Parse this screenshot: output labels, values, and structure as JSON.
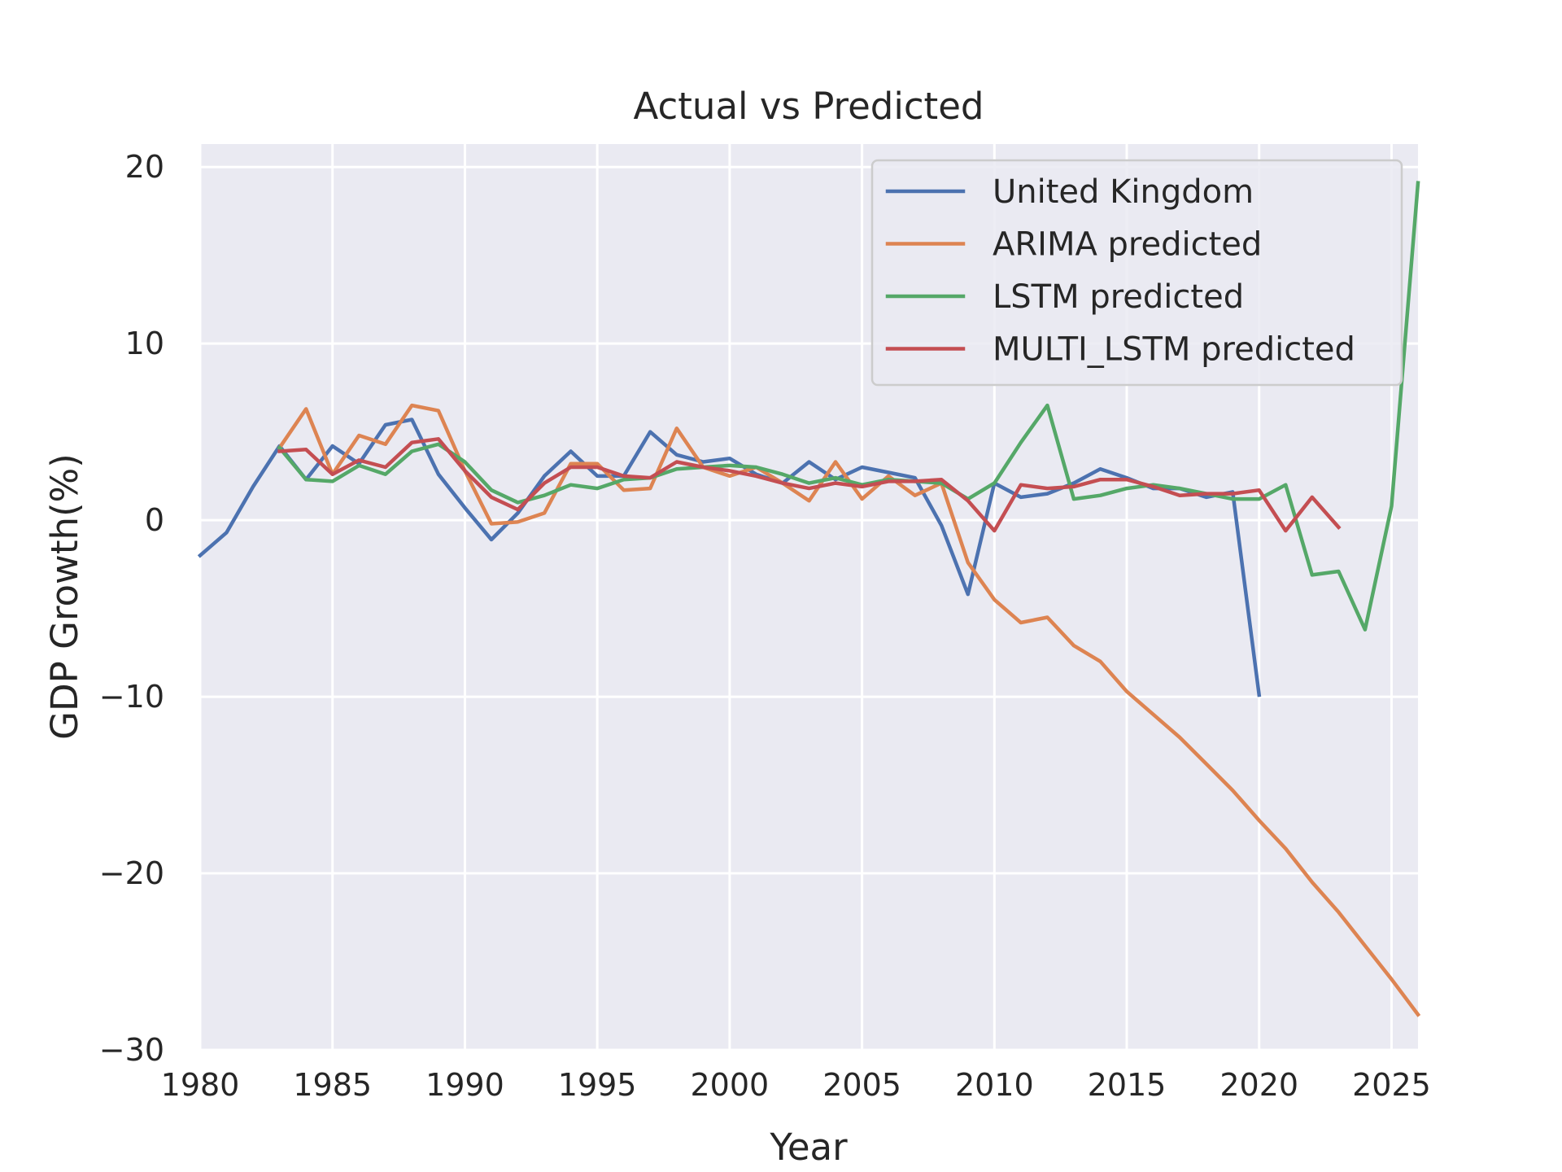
{
  "chart_data": {
    "type": "line",
    "title": "Actual vs Predicted",
    "xlabel": "Year",
    "ylabel": "GDP Growth(%)",
    "xlim": [
      1980,
      2026
    ],
    "ylim": [
      -30,
      21.3
    ],
    "xticks": [
      1980,
      1985,
      1990,
      1995,
      2000,
      2005,
      2010,
      2015,
      2020,
      2025
    ],
    "yticks": [
      20,
      10,
      0,
      -10,
      -20,
      -30
    ],
    "ytick_labels": [
      "20",
      "10",
      "0",
      "−10",
      "−20",
      "−30"
    ],
    "grid": true,
    "legend": "top-right",
    "series": [
      {
        "name": "United Kingdom",
        "color": "#4c72b0",
        "x": [
          1980,
          1981,
          1982,
          1983,
          1984,
          1985,
          1986,
          1987,
          1988,
          1989,
          1990,
          1991,
          1992,
          1993,
          1994,
          1995,
          1996,
          1997,
          1998,
          1999,
          2000,
          2001,
          2002,
          2003,
          2004,
          2005,
          2006,
          2007,
          2008,
          2009,
          2010,
          2011,
          2012,
          2013,
          2014,
          2015,
          2016,
          2017,
          2018,
          2019,
          2020
        ],
        "y": [
          -2.0,
          -0.7,
          1.9,
          4.2,
          2.3,
          4.2,
          3.2,
          5.4,
          5.7,
          2.6,
          0.7,
          -1.1,
          0.4,
          2.5,
          3.9,
          2.5,
          2.5,
          5.0,
          3.7,
          3.3,
          3.5,
          2.6,
          2.1,
          3.3,
          2.3,
          3.0,
          2.7,
          2.4,
          -0.3,
          -4.2,
          2.1,
          1.3,
          1.5,
          2.1,
          2.9,
          2.4,
          1.8,
          1.8,
          1.3,
          1.6,
          -9.9
        ]
      },
      {
        "name": "ARIMA predicted",
        "color": "#dd8452",
        "x": [
          1983,
          1984,
          1985,
          1986,
          1987,
          1988,
          1989,
          1990,
          1991,
          1992,
          1993,
          1994,
          1995,
          1996,
          1997,
          1998,
          1999,
          2000,
          2001,
          2002,
          2003,
          2004,
          2005,
          2006,
          2007,
          2008,
          2009,
          2010,
          2011,
          2012,
          2013,
          2014,
          2015,
          2016,
          2017,
          2018,
          2019,
          2020,
          2021,
          2022,
          2023,
          2024,
          2025,
          2026
        ],
        "y": [
          4.1,
          6.3,
          2.6,
          4.8,
          4.3,
          6.5,
          6.2,
          2.8,
          -0.2,
          -0.1,
          0.4,
          3.2,
          3.2,
          1.7,
          1.8,
          5.2,
          3.0,
          2.5,
          3.0,
          2.1,
          1.1,
          3.3,
          1.2,
          2.5,
          1.4,
          2.1,
          -2.4,
          -4.5,
          -5.8,
          -5.5,
          -7.1,
          -8.0,
          -9.7,
          -11.0,
          -12.3,
          -13.8,
          -15.3,
          -17.0,
          -18.6,
          -20.5,
          -22.2,
          -24.1,
          -26.0,
          -28.0
        ]
      },
      {
        "name": "LSTM predicted",
        "color": "#55a868",
        "x": [
          1983,
          1984,
          1985,
          1986,
          1987,
          1988,
          1989,
          1990,
          1991,
          1992,
          1993,
          1994,
          1995,
          1996,
          1997,
          1998,
          1999,
          2000,
          2001,
          2002,
          2003,
          2004,
          2005,
          2006,
          2007,
          2008,
          2009,
          2010,
          2011,
          2012,
          2013,
          2014,
          2015,
          2016,
          2017,
          2018,
          2019,
          2020,
          2021,
          2022,
          2023,
          2024,
          2025,
          2026
        ],
        "y": [
          4.1,
          2.3,
          2.2,
          3.1,
          2.6,
          3.9,
          4.3,
          3.3,
          1.7,
          1.0,
          1.4,
          2.0,
          1.8,
          2.3,
          2.4,
          2.9,
          3.0,
          3.1,
          3.0,
          2.6,
          2.1,
          2.4,
          2.0,
          2.3,
          2.2,
          2.1,
          1.2,
          2.1,
          4.4,
          6.5,
          1.2,
          1.4,
          1.8,
          2.0,
          1.8,
          1.5,
          1.2,
          1.2,
          2.0,
          -3.1,
          -2.9,
          -6.2,
          0.8,
          19.1
        ]
      },
      {
        "name": "MULTI_LSTM predicted",
        "color": "#c44e52",
        "x": [
          1983,
          1984,
          1985,
          1986,
          1987,
          1988,
          1989,
          1990,
          1991,
          1992,
          1993,
          1994,
          1995,
          1996,
          1997,
          1998,
          1999,
          2000,
          2001,
          2002,
          2003,
          2004,
          2005,
          2006,
          2007,
          2008,
          2009,
          2010,
          2011,
          2012,
          2013,
          2014,
          2015,
          2016,
          2017,
          2018,
          2019,
          2020,
          2021,
          2022,
          2023
        ],
        "y": [
          3.9,
          4.0,
          2.6,
          3.4,
          3.0,
          4.4,
          4.6,
          2.8,
          1.3,
          0.6,
          2.1,
          3.0,
          3.0,
          2.5,
          2.4,
          3.3,
          3.0,
          2.8,
          2.5,
          2.1,
          1.8,
          2.1,
          1.9,
          2.2,
          2.2,
          2.3,
          1.1,
          -0.6,
          2.0,
          1.8,
          1.9,
          2.3,
          2.3,
          1.9,
          1.4,
          1.5,
          1.5,
          1.7,
          -0.6,
          1.3,
          -0.4
        ]
      }
    ]
  }
}
